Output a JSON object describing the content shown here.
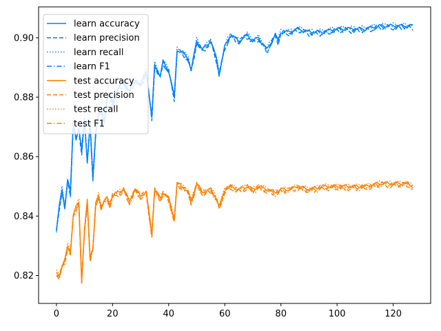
{
  "chart_data": {
    "type": "line",
    "title": "",
    "xlabel": "",
    "ylabel": "",
    "xlim": [
      -6.35,
      133.35
    ],
    "ylim": [
      0.8106,
      0.9104
    ],
    "xticks": [
      0,
      20,
      40,
      60,
      80,
      100,
      120
    ],
    "yticks": [
      0.82,
      0.84,
      0.86,
      0.88,
      0.9
    ],
    "ytick_labels": [
      "0.82",
      "0.84",
      "0.86",
      "0.88",
      "0.90"
    ],
    "grid": false,
    "legend_position": "upper-left",
    "anchors": {
      "learn": [
        [
          0,
          0.835
        ],
        [
          1,
          0.843
        ],
        [
          2,
          0.849
        ],
        [
          3,
          0.843
        ],
        [
          4,
          0.852
        ],
        [
          5,
          0.848
        ],
        [
          6,
          0.872
        ],
        [
          7,
          0.866
        ],
        [
          8,
          0.869
        ],
        [
          9,
          0.862
        ],
        [
          10,
          0.873
        ],
        [
          11,
          0.858
        ],
        [
          12,
          0.871
        ],
        [
          13,
          0.853
        ],
        [
          14,
          0.868
        ],
        [
          15,
          0.874
        ],
        [
          16,
          0.876
        ],
        [
          17,
          0.872
        ],
        [
          18,
          0.879
        ],
        [
          19,
          0.881
        ],
        [
          20,
          0.878
        ],
        [
          22,
          0.883
        ],
        [
          24,
          0.885
        ],
        [
          26,
          0.882
        ],
        [
          28,
          0.886
        ],
        [
          30,
          0.884
        ],
        [
          32,
          0.889
        ],
        [
          34,
          0.873
        ],
        [
          35,
          0.891
        ],
        [
          37,
          0.887
        ],
        [
          38,
          0.892
        ],
        [
          40,
          0.889
        ],
        [
          42,
          0.88
        ],
        [
          43,
          0.896
        ],
        [
          45,
          0.895
        ],
        [
          47,
          0.893
        ],
        [
          48,
          0.889
        ],
        [
          50,
          0.899
        ],
        [
          52,
          0.896
        ],
        [
          55,
          0.899
        ],
        [
          57,
          0.893
        ],
        [
          58,
          0.888
        ],
        [
          60,
          0.897
        ],
        [
          62,
          0.901
        ],
        [
          65,
          0.899
        ],
        [
          68,
          0.901
        ],
        [
          70,
          0.899
        ],
        [
          72,
          0.9
        ],
        [
          75,
          0.896
        ],
        [
          78,
          0.901
        ],
        [
          79,
          0.899
        ],
        [
          80,
          0.902
        ],
        [
          83,
          0.902
        ],
        [
          86,
          0.903
        ],
        [
          90,
          0.902
        ],
        [
          95,
          0.902
        ],
        [
          100,
          0.903
        ],
        [
          105,
          0.903
        ],
        [
          110,
          0.903
        ],
        [
          115,
          0.904
        ],
        [
          120,
          0.904
        ],
        [
          125,
          0.904
        ],
        [
          127,
          0.904
        ]
      ],
      "test": [
        [
          0,
          0.821
        ],
        [
          1,
          0.82
        ],
        [
          2,
          0.823
        ],
        [
          3,
          0.825
        ],
        [
          4,
          0.83
        ],
        [
          5,
          0.828
        ],
        [
          6,
          0.84
        ],
        [
          7,
          0.843
        ],
        [
          8,
          0.845
        ],
        [
          9,
          0.818
        ],
        [
          10,
          0.835
        ],
        [
          11,
          0.845
        ],
        [
          12,
          0.826
        ],
        [
          13,
          0.829
        ],
        [
          14,
          0.844
        ],
        [
          15,
          0.847
        ],
        [
          16,
          0.843
        ],
        [
          17,
          0.845
        ],
        [
          18,
          0.846
        ],
        [
          19,
          0.844
        ],
        [
          20,
          0.847
        ],
        [
          22,
          0.848
        ],
        [
          24,
          0.849
        ],
        [
          26,
          0.845
        ],
        [
          28,
          0.849
        ],
        [
          30,
          0.847
        ],
        [
          32,
          0.848
        ],
        [
          34,
          0.834
        ],
        [
          35,
          0.849
        ],
        [
          37,
          0.846
        ],
        [
          38,
          0.848
        ],
        [
          40,
          0.846
        ],
        [
          42,
          0.839
        ],
        [
          43,
          0.851
        ],
        [
          45,
          0.85
        ],
        [
          47,
          0.848
        ],
        [
          48,
          0.845
        ],
        [
          50,
          0.851
        ],
        [
          52,
          0.848
        ],
        [
          55,
          0.849
        ],
        [
          57,
          0.846
        ],
        [
          58,
          0.843
        ],
        [
          60,
          0.849
        ],
        [
          62,
          0.85
        ],
        [
          65,
          0.849
        ],
        [
          68,
          0.85
        ],
        [
          70,
          0.849
        ],
        [
          72,
          0.85
        ],
        [
          75,
          0.849
        ],
        [
          78,
          0.848
        ],
        [
          80,
          0.849
        ],
        [
          83,
          0.849
        ],
        [
          86,
          0.85
        ],
        [
          90,
          0.849
        ],
        [
          95,
          0.85
        ],
        [
          100,
          0.85
        ],
        [
          105,
          0.85
        ],
        [
          110,
          0.85
        ],
        [
          115,
          0.851
        ],
        [
          120,
          0.851
        ],
        [
          125,
          0.851
        ],
        [
          127,
          0.85
        ]
      ]
    },
    "series": [
      {
        "name": "learn accuracy",
        "group": "learn",
        "color": "#007fff",
        "dash": "",
        "noise": 0.0006,
        "offset": 0.0
      },
      {
        "name": "learn precision",
        "group": "learn",
        "color": "#007fff",
        "dash": "6,3",
        "noise": 0.001,
        "offset": -0.0005
      },
      {
        "name": "learn recall",
        "group": "learn",
        "color": "#007fff",
        "dash": "1.5,2.5",
        "noise": 0.0008,
        "offset": 0.0003
      },
      {
        "name": "learn F1",
        "group": "learn",
        "color": "#007fff",
        "dash": "7,3,1.5,3",
        "noise": 0.0009,
        "offset": -0.0003
      },
      {
        "name": "test accuracy",
        "group": "test",
        "color": "#ff7f00",
        "dash": "",
        "noise": 0.0006,
        "offset": 0.0
      },
      {
        "name": "test precision",
        "group": "test",
        "color": "#ff7f00",
        "dash": "6,3",
        "noise": 0.001,
        "offset": -0.0004
      },
      {
        "name": "test recall",
        "group": "test",
        "color": "#ff7f00",
        "dash": "1.5,2.5",
        "noise": 0.0008,
        "offset": 0.0002
      },
      {
        "name": "test F1",
        "group": "test",
        "color": "#ff7f00",
        "dash": "7,3,1.5,3",
        "noise": 0.0009,
        "offset": -0.0006
      }
    ]
  }
}
